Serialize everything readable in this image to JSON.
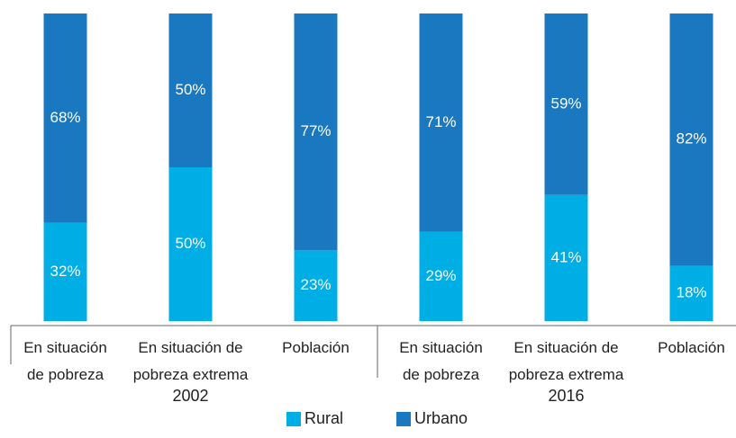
{
  "chart_data": {
    "type": "stacked_bar",
    "categories": [
      "En situación\nde pobreza",
      "En situación de\npobreza extrema",
      "Población",
      "En situación\nde pobreza",
      "En situación de\npobreza extrema",
      "Población"
    ],
    "groups": [
      "2002",
      "2016"
    ],
    "ylim": [
      0,
      100
    ],
    "legend": "bottom",
    "series": [
      {
        "name": "Rural",
        "color": "#00aee6",
        "values": [
          32,
          50,
          23,
          29,
          41,
          18
        ],
        "value_labels": [
          "32%",
          "50%",
          "23%",
          "29%",
          "41%",
          "18%"
        ]
      },
      {
        "name": "Urbano",
        "color": "#1a78c0",
        "values": [
          68,
          50,
          77,
          71,
          59,
          82
        ],
        "value_labels": [
          "68%",
          "50%",
          "77%",
          "71%",
          "59%",
          "82%"
        ]
      }
    ]
  }
}
